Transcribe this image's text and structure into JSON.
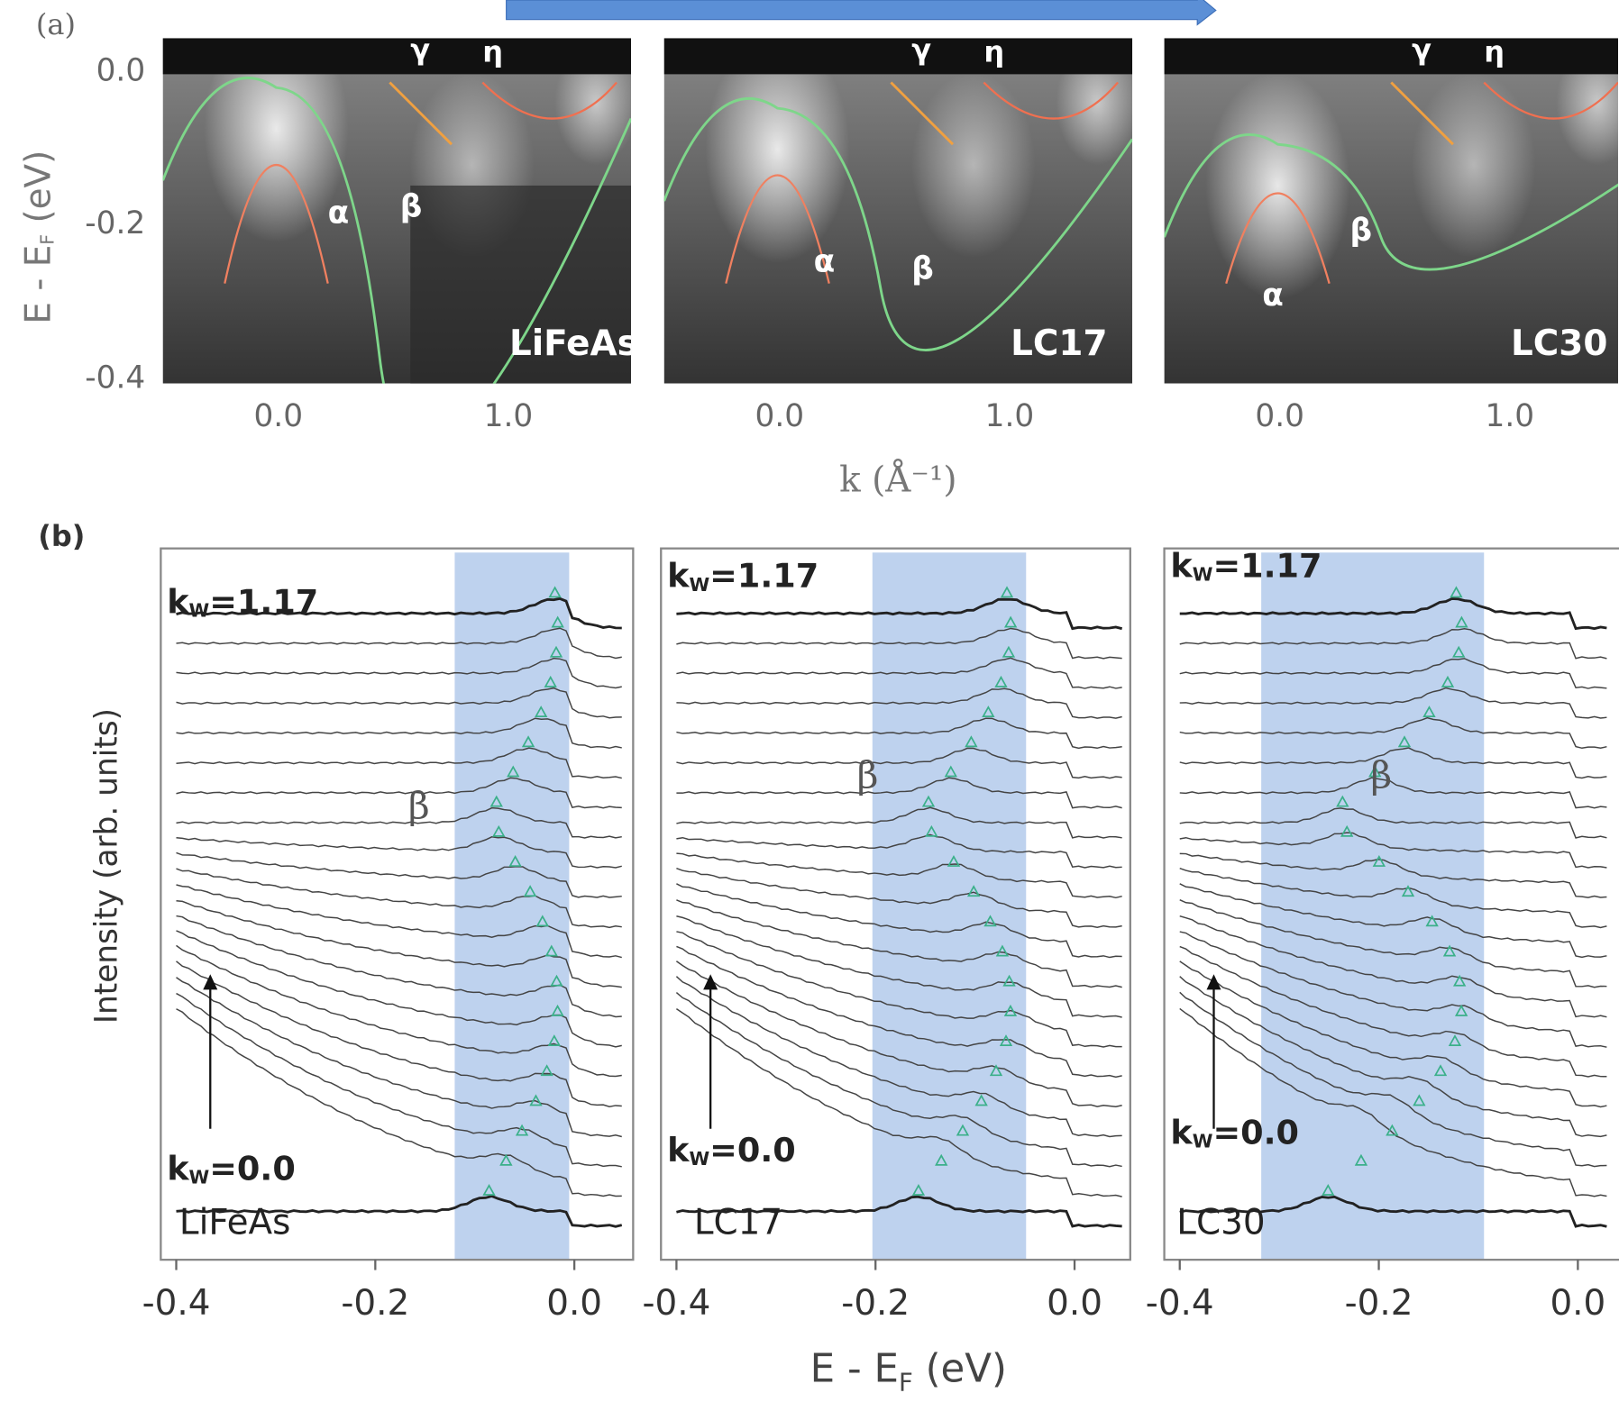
{
  "panel_a": {
    "label": "(a)",
    "y_title": [
      "E - E",
      "F",
      " (eV)"
    ],
    "yticks": [
      "0.0",
      "-0.2",
      "-0.4"
    ],
    "xticks": [
      "0.0",
      "1.0"
    ],
    "x_title": "k  (Å⁻¹)",
    "images": [
      {
        "sample": "LiFeAs",
        "bands": [
          "γ",
          "η",
          "α",
          "β"
        ]
      },
      {
        "sample": "LC17",
        "bands": [
          "γ",
          "η",
          "α",
          "β"
        ]
      },
      {
        "sample": "LC30",
        "bands": [
          "γ",
          "η",
          "α",
          "β"
        ]
      }
    ]
  },
  "panel_b": {
    "label": "(b)",
    "y_title": "Intensity (arb. units)",
    "x_title": [
      "E - E",
      "F",
      " (eV)"
    ],
    "xticks": [
      "-0.4",
      "-0.2",
      "0.0"
    ],
    "panels": [
      {
        "sample": "LiFeAs",
        "k": "k",
        "k_sub": "W",
        "top": "=1.17",
        "bottom": "=0.0",
        "band": "β"
      },
      {
        "sample": "LC17",
        "k": "k",
        "k_sub": "W",
        "top": "=1.17",
        "bottom": "=0.0",
        "band": "β"
      },
      {
        "sample": "LC30",
        "k": "k",
        "k_sub": "W",
        "top": "=1.17",
        "bottom": "=0.0",
        "band": "β"
      }
    ]
  }
}
